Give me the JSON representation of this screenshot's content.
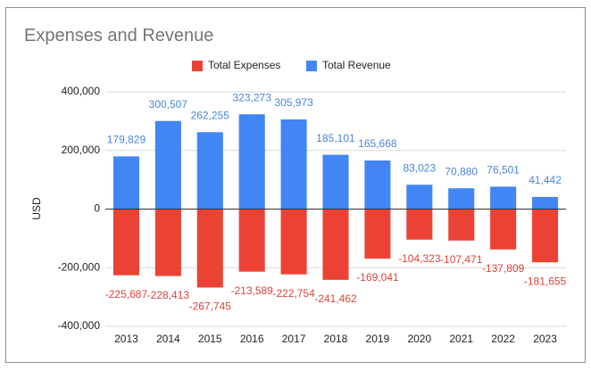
{
  "chart_data": {
    "type": "bar",
    "title": "Expenses and Revenue",
    "ylabel": "USD",
    "xlabel": "",
    "categories": [
      "2013",
      "2014",
      "2015",
      "2016",
      "2017",
      "2018",
      "2019",
      "2020",
      "2021",
      "2022",
      "2023"
    ],
    "series": [
      {
        "name": "Total Expenses",
        "color": "#ea4335",
        "values": [
          -225687,
          -228413,
          -267745,
          -213589,
          -222754,
          -241462,
          -169041,
          -104323,
          -107471,
          -137809,
          -181655
        ],
        "labels": [
          "-225,687",
          "-228,413",
          "-267,745",
          "-213,589",
          "-222,754",
          "-241,462",
          "-169,041",
          "-104,323",
          "-107,471",
          "-137,809",
          "-181,655"
        ]
      },
      {
        "name": "Total Revenue",
        "color": "#4285f4",
        "values": [
          179829,
          300507,
          262255,
          323273,
          305973,
          185101,
          165668,
          83023,
          70880,
          76501,
          41442
        ],
        "labels": [
          "179,829",
          "300,507",
          "262,255",
          "323,273",
          "305,973",
          "185,101",
          "165,668",
          "83,023",
          "70,880",
          "76,501",
          "41,442"
        ]
      }
    ],
    "ylim": [
      -400000,
      400000
    ],
    "yticks": [
      400000,
      200000,
      0,
      -200000,
      -400000
    ],
    "ytick_labels": [
      "400,000",
      "200,000",
      "0",
      "-200,000",
      "-400,000"
    ],
    "grid": true,
    "legend_position": "top-center",
    "label_colors": {
      "Total Expenses": "#d9443a",
      "Total Revenue": "#4a86d6"
    }
  }
}
